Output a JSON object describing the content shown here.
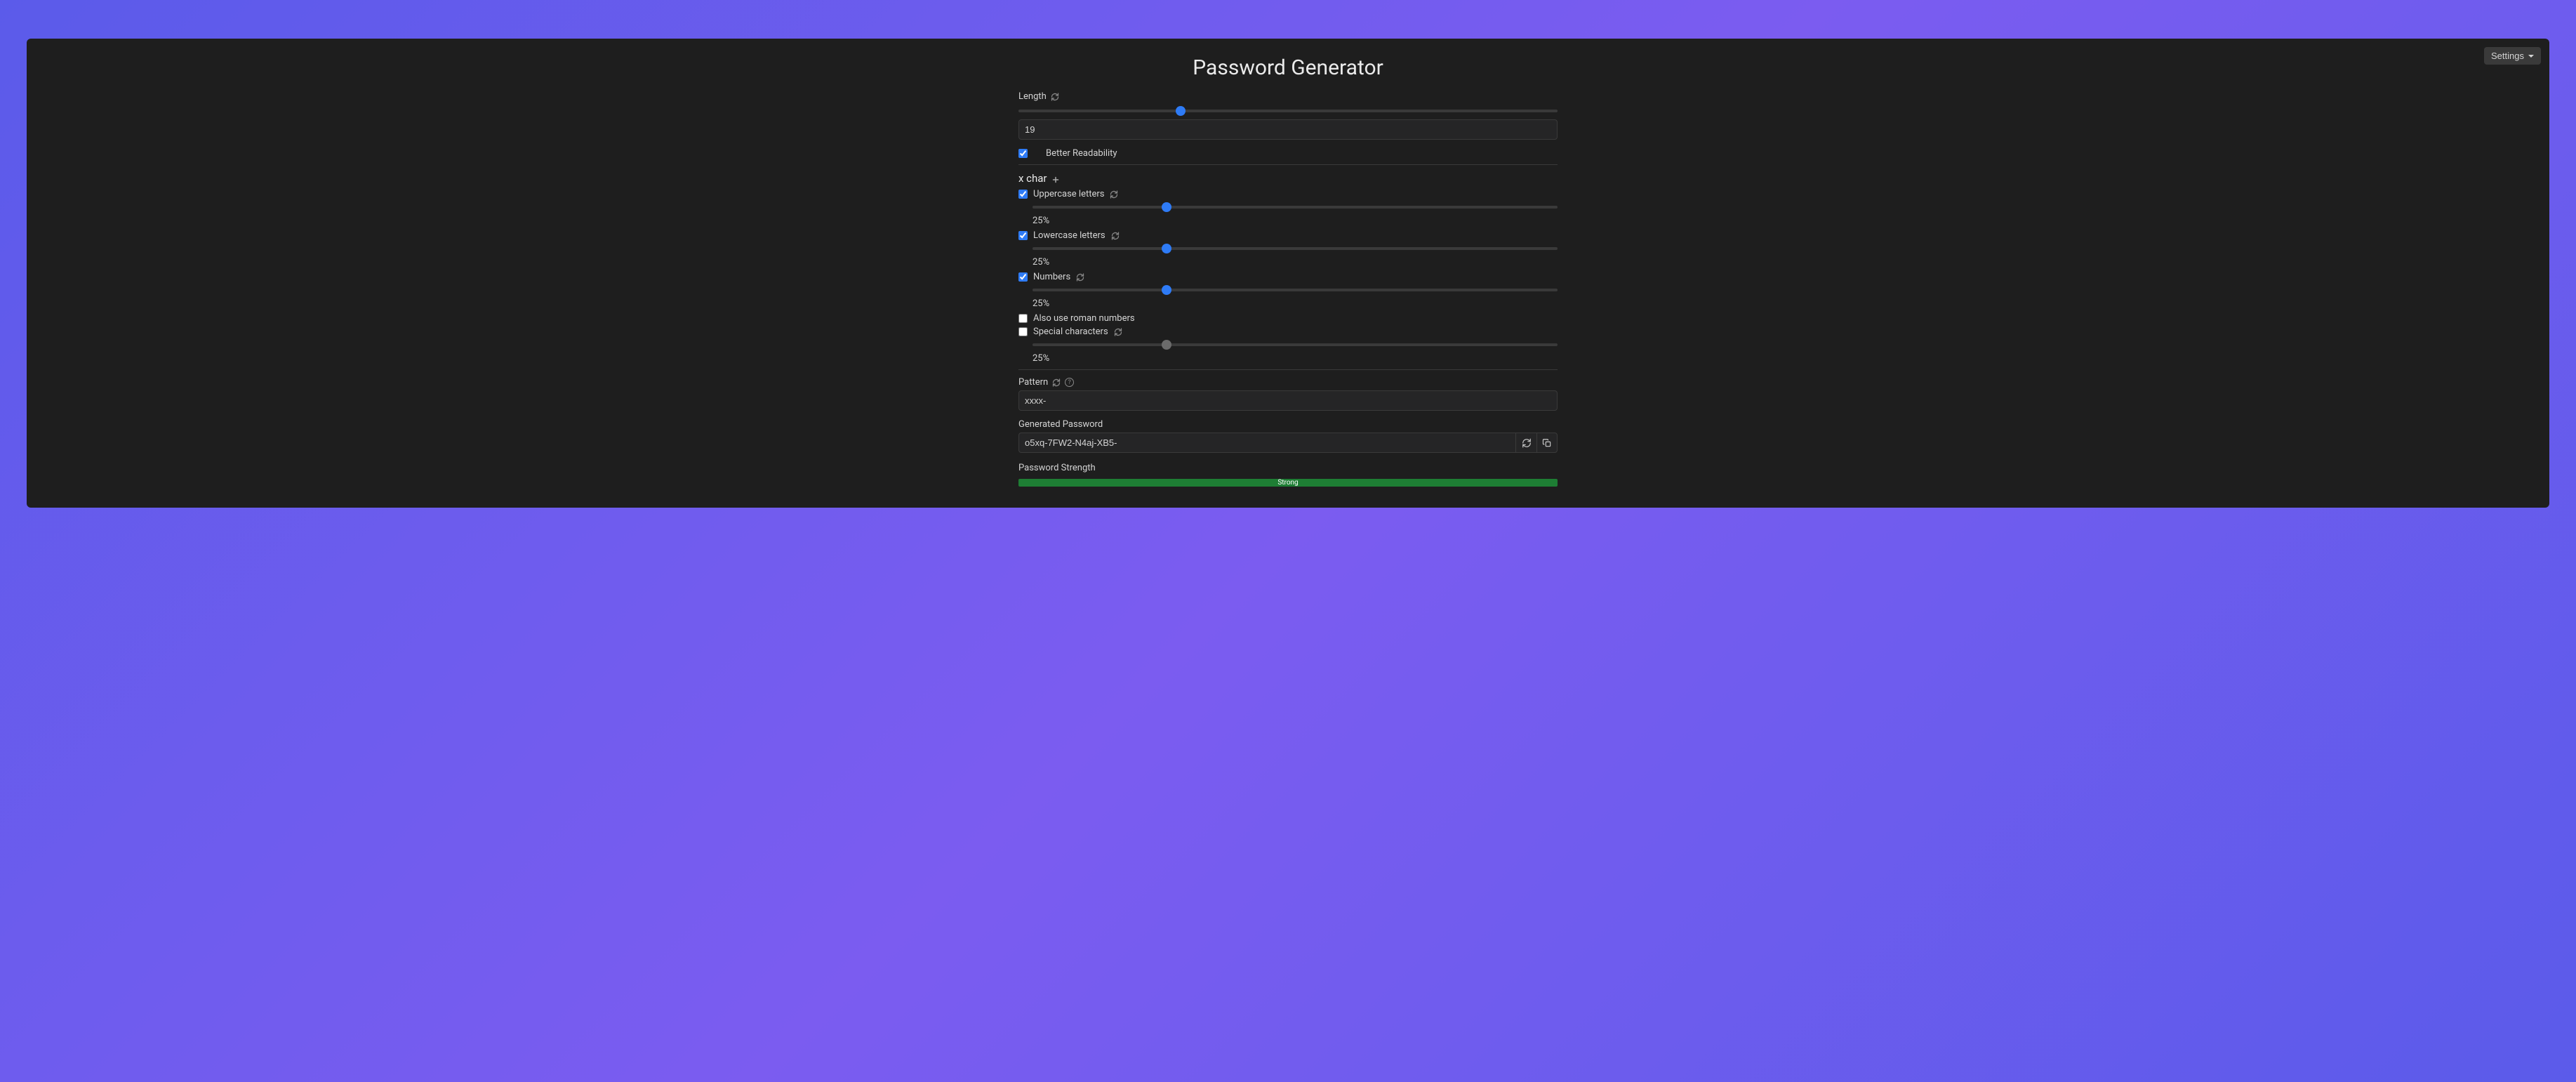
{
  "settings_label": "Settings",
  "title": "Password Generator",
  "length": {
    "label": "Length",
    "slider_min": 0,
    "slider_max": 64,
    "value": 19,
    "input_value": "19"
  },
  "better_readability": {
    "checked": true,
    "label": "Better Readability"
  },
  "xchar": {
    "heading": "x char",
    "groups": [
      {
        "key": "uppercase",
        "checked": true,
        "label": "Uppercase letters",
        "percent_value": 25,
        "percent_display": "25%",
        "slider_enabled": true
      },
      {
        "key": "lowercase",
        "checked": true,
        "label": "Lowercase letters",
        "percent_value": 25,
        "percent_display": "25%",
        "slider_enabled": true
      },
      {
        "key": "numbers",
        "checked": true,
        "label": "Numbers",
        "percent_value": 25,
        "percent_display": "25%",
        "slider_enabled": true,
        "sub_checkbox": {
          "checked": false,
          "label": "Also use roman numbers"
        }
      },
      {
        "key": "special",
        "checked": false,
        "label": "Special characters",
        "percent_value": 25,
        "percent_display": "25%",
        "slider_enabled": false
      }
    ]
  },
  "pattern": {
    "label": "Pattern",
    "value": "xxxx-"
  },
  "generated": {
    "label": "Generated Password",
    "value": "o5xq-7FW2-N4aj-XB5-"
  },
  "strength": {
    "label": "Password Strength",
    "text": "Strong",
    "percent": 100,
    "color": "#1e7e34"
  },
  "colors": {
    "panel_bg": "#1e1e1e",
    "input_bg": "#252526",
    "border": "#3a3a3a",
    "text": "#d4d4d4",
    "accent": "#2e7bf6",
    "slider_off": "#6b6b6b",
    "bg_gradient_start": "#5b5bea",
    "bg_gradient_mid": "#7b5cf0"
  }
}
